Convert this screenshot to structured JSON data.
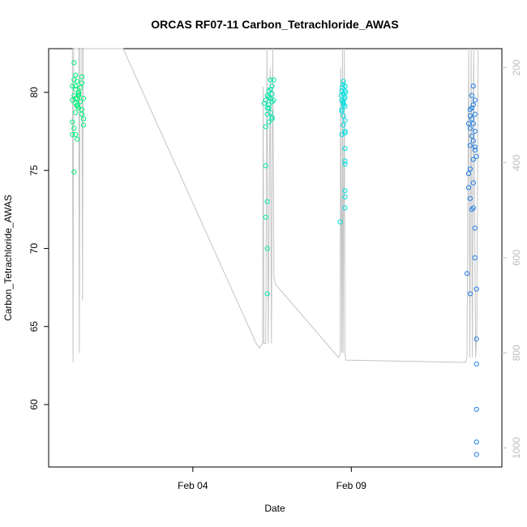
{
  "chart_data": {
    "type": "scatter",
    "title": "ORCAS RF07-11 Carbon_Tetrachloride_AWAS",
    "xlabel": "Date",
    "ylabel": "Carbon_Tetrachloride_AWAS",
    "x_ticks": [
      {
        "label": "Feb 04",
        "value": 4.0
      },
      {
        "label": "Feb 09",
        "value": 9.0
      }
    ],
    "xlim": [
      -0.55,
      13.75
    ],
    "ylim": [
      56.0,
      82.8
    ],
    "y_ticks": [
      60,
      65,
      70,
      75,
      80
    ],
    "right_axis": {
      "label": "",
      "lim": [
        1040,
        160
      ],
      "ticks": [
        200,
        400,
        600,
        800,
        1000
      ],
      "color": "#bdbdbd"
    },
    "grid": false,
    "series": [
      {
        "color": "#00f07a",
        "points": [
          [
            0.25,
            81.9
          ],
          [
            0.3,
            81.1
          ],
          [
            0.35,
            80.7
          ],
          [
            0.2,
            80.4
          ],
          [
            0.3,
            80.2
          ],
          [
            0.4,
            80.0
          ],
          [
            0.25,
            79.8
          ],
          [
            0.35,
            79.6
          ],
          [
            0.3,
            79.3
          ],
          [
            0.4,
            79.0
          ],
          [
            0.3,
            78.7
          ],
          [
            0.2,
            78.1
          ],
          [
            0.25,
            77.7
          ],
          [
            0.3,
            77.3
          ],
          [
            0.35,
            77.0
          ],
          [
            0.25,
            74.9
          ],
          [
            0.4,
            79.9
          ],
          [
            0.45,
            79.4
          ],
          [
            0.5,
            81.0
          ],
          [
            0.5,
            80.6
          ],
          [
            0.55,
            79.6
          ],
          [
            0.5,
            78.9
          ],
          [
            0.5,
            78.6
          ],
          [
            0.55,
            78.3
          ],
          [
            0.45,
            80.3
          ],
          [
            0.4,
            79.8
          ],
          [
            0.3,
            79.6
          ],
          [
            0.25,
            80.8
          ],
          [
            0.2,
            79.5
          ],
          [
            0.35,
            79.2
          ],
          [
            0.3,
            80.4
          ],
          [
            0.35,
            79.1
          ],
          [
            0.55,
            77.9
          ],
          [
            0.2,
            77.3
          ]
        ]
      },
      {
        "color": "#00e6a8",
        "points": [
          [
            6.45,
            80.8
          ],
          [
            6.5,
            80.4
          ],
          [
            6.4,
            80.1
          ],
          [
            6.35,
            79.8
          ],
          [
            6.45,
            79.6
          ],
          [
            6.5,
            79.4
          ],
          [
            6.4,
            79.2
          ],
          [
            6.3,
            79.5
          ],
          [
            6.35,
            79.0
          ],
          [
            6.45,
            78.7
          ],
          [
            6.5,
            78.4
          ],
          [
            6.4,
            78.1
          ],
          [
            6.3,
            77.8
          ],
          [
            6.25,
            79.3
          ],
          [
            6.3,
            75.3
          ],
          [
            6.35,
            73.0
          ],
          [
            6.3,
            72.0
          ],
          [
            6.35,
            70.0
          ],
          [
            6.35,
            67.1
          ],
          [
            6.4,
            79.7
          ],
          [
            6.55,
            80.8
          ],
          [
            6.5,
            79.9
          ],
          [
            6.45,
            80.2
          ],
          [
            6.55,
            79.5
          ],
          [
            6.4,
            79.0
          ],
          [
            6.35,
            78.6
          ],
          [
            6.5,
            78.3
          ]
        ]
      },
      {
        "color": "#00e0e0",
        "points": [
          [
            8.75,
            80.7
          ],
          [
            8.8,
            80.4
          ],
          [
            8.7,
            80.1
          ],
          [
            8.75,
            79.9
          ],
          [
            8.8,
            79.7
          ],
          [
            8.7,
            79.5
          ],
          [
            8.75,
            79.3
          ],
          [
            8.8,
            79.1
          ],
          [
            8.7,
            78.8
          ],
          [
            8.75,
            78.5
          ],
          [
            8.8,
            78.2
          ],
          [
            8.75,
            77.9
          ],
          [
            8.8,
            77.5
          ],
          [
            8.7,
            77.3
          ],
          [
            8.8,
            76.4
          ],
          [
            8.8,
            75.4
          ],
          [
            8.8,
            73.7
          ],
          [
            8.8,
            73.3
          ],
          [
            8.8,
            72.6
          ],
          [
            8.65,
            71.7
          ],
          [
            8.72,
            80.3
          ],
          [
            8.78,
            79.6
          ],
          [
            8.82,
            80.0
          ],
          [
            8.68,
            79.8
          ],
          [
            8.74,
            79.4
          ],
          [
            8.76,
            79.2
          ],
          [
            8.8,
            80.1
          ],
          [
            8.7,
            78.9
          ],
          [
            8.74,
            80.5
          ],
          [
            8.8,
            75.6
          ],
          [
            8.8,
            77.4
          ]
        ]
      },
      {
        "color": "#1e7fe6",
        "points": [
          [
            12.85,
            80.4
          ],
          [
            12.8,
            79.8
          ],
          [
            12.9,
            79.5
          ],
          [
            12.85,
            79.2
          ],
          [
            12.75,
            78.9
          ],
          [
            12.9,
            78.6
          ],
          [
            12.8,
            78.3
          ],
          [
            12.85,
            78.0
          ],
          [
            12.75,
            77.7
          ],
          [
            12.9,
            77.5
          ],
          [
            12.8,
            77.2
          ],
          [
            12.85,
            76.9
          ],
          [
            12.75,
            76.6
          ],
          [
            12.9,
            76.3
          ],
          [
            12.75,
            75.1
          ],
          [
            12.85,
            74.2
          ],
          [
            12.7,
            73.9
          ],
          [
            12.85,
            72.6
          ],
          [
            12.9,
            71.3
          ],
          [
            12.9,
            69.4
          ],
          [
            12.65,
            68.4
          ],
          [
            12.75,
            67.1
          ],
          [
            12.95,
            67.4
          ],
          [
            12.95,
            64.2
          ],
          [
            12.95,
            62.6
          ],
          [
            12.95,
            59.7
          ],
          [
            12.95,
            57.6
          ],
          [
            12.95,
            56.8
          ],
          [
            12.75,
            73.2
          ],
          [
            12.7,
            74.8
          ],
          [
            12.85,
            75.7
          ],
          [
            12.8,
            72.5
          ],
          [
            12.9,
            76.5
          ],
          [
            12.95,
            75.9
          ],
          [
            12.8,
            79.0
          ],
          [
            12.75,
            78.5
          ],
          [
            12.7,
            78.0
          ]
        ]
      }
    ],
    "line_series": {
      "color": "#c4c4c4",
      "y_axis": "right",
      "points": [
        [
          0.2,
          160
        ],
        [
          0.22,
          820
        ],
        [
          0.24,
          160
        ],
        [
          0.3,
          160
        ],
        [
          0.4,
          160
        ],
        [
          0.42,
          800
        ],
        [
          0.44,
          160
        ],
        [
          0.5,
          160
        ],
        [
          0.52,
          690
        ],
        [
          0.54,
          160
        ],
        [
          0.6,
          160
        ],
        [
          1.1,
          160
        ],
        [
          1.8,
          160
        ],
        [
          6.0,
          780
        ],
        [
          6.1,
          790
        ],
        [
          6.2,
          780
        ],
        [
          6.22,
          240
        ],
        [
          6.24,
          780
        ],
        [
          6.3,
          780
        ],
        [
          6.34,
          160
        ],
        [
          6.38,
          780
        ],
        [
          6.44,
          200
        ],
        [
          6.48,
          780
        ],
        [
          6.52,
          160
        ],
        [
          6.56,
          640
        ],
        [
          6.6,
          655
        ],
        [
          8.6,
          810
        ],
        [
          8.65,
          800
        ],
        [
          8.66,
          200
        ],
        [
          8.7,
          800
        ],
        [
          8.72,
          160
        ],
        [
          8.74,
          800
        ],
        [
          8.78,
          160
        ],
        [
          8.8,
          800
        ],
        [
          8.82,
          815
        ],
        [
          12.6,
          820
        ],
        [
          12.65,
          810
        ],
        [
          12.7,
          160
        ],
        [
          12.74,
          810
        ],
        [
          12.78,
          160
        ],
        [
          12.82,
          810
        ],
        [
          12.86,
          160
        ],
        [
          12.92,
          810
        ],
        [
          12.96,
          760
        ],
        [
          13.0,
          160
        ]
      ]
    }
  }
}
